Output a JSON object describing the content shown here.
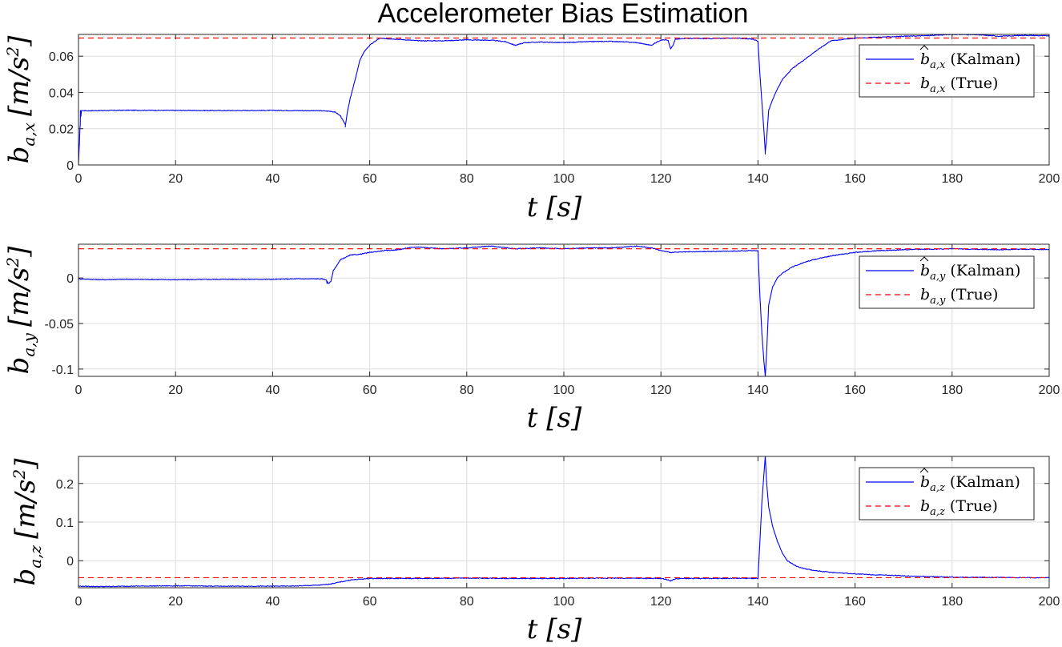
{
  "chart_data": {
    "title": "Accelerometer Bias Estimation",
    "subplots": [
      {
        "type": "line",
        "name_key": "x",
        "ylabel": [
          "b",
          "a,x",
          "[m/s",
          "2",
          "]"
        ],
        "xlabel": [
          "t",
          "[s]"
        ],
        "xlim": [
          0,
          200
        ],
        "ylim": [
          0,
          0.072
        ],
        "xticks": [
          0,
          20,
          40,
          60,
          80,
          100,
          120,
          140,
          160,
          180,
          200
        ],
        "yticks": [
          0,
          0.02,
          0.04,
          0.06
        ],
        "ytick_labels": [
          "0",
          "0.02",
          "0.04",
          "0.06"
        ],
        "grid": true,
        "legend_location": "top-right",
        "series": [
          {
            "name": "b̂a,x (Kalman)",
            "legend_symbol": "b",
            "legend_sub": "a,x",
            "legend_hat": true,
            "legend_suffix": "(Kalman)",
            "color": "#0000ff",
            "style": "solid",
            "x": [
              0,
              0.3,
              0.6,
              2,
              10,
              20,
              30,
              40,
              45,
              50,
              52,
              53,
              54,
              54.6,
              55,
              55.4,
              56,
              57,
              58,
              59,
              60,
              61,
              62,
              65,
              70,
              75,
              80,
              85,
              88,
              90,
              92,
              95,
              100,
              105,
              110,
              115,
              118,
              120,
              121,
              121.5,
              122,
              122.5,
              123,
              125,
              130,
              135,
              139,
              140,
              140.4,
              140.8,
              141.2,
              141.5,
              141.8,
              142.2,
              143,
              144,
              145,
              147,
              150,
              152,
              155,
              160,
              165,
              170,
              175,
              180,
              185,
              190,
              195,
              200
            ],
            "y": [
              0.0,
              0.02,
              0.03,
              0.0299,
              0.0302,
              0.0301,
              0.03,
              0.0301,
              0.03,
              0.0299,
              0.0296,
              0.029,
              0.027,
              0.024,
              0.022,
              0.029,
              0.037,
              0.047,
              0.058,
              0.063,
              0.066,
              0.068,
              0.0698,
              0.0695,
              0.0685,
              0.0685,
              0.069,
              0.0688,
              0.068,
              0.066,
              0.0675,
              0.0678,
              0.0675,
              0.068,
              0.0682,
              0.0675,
              0.066,
              0.069,
              0.069,
              0.0685,
              0.064,
              0.066,
              0.0695,
              0.0698,
              0.0697,
              0.07,
              0.0695,
              0.068,
              0.05,
              0.035,
              0.02,
              0.007,
              0.015,
              0.03,
              0.036,
              0.042,
              0.047,
              0.053,
              0.059,
              0.063,
              0.0685,
              0.07,
              0.0705,
              0.071,
              0.0713,
              0.072,
              0.0718,
              0.071,
              0.0715,
              0.0712
            ],
            "draw_xy": [
              [
                0,
                0
              ],
              [
                0.2,
                0.012
              ],
              [
                0.4,
                0.03
              ],
              [
                55,
                0.021
              ],
              [
                141.5,
                0.006
              ]
            ]
          },
          {
            "name": "ba,x (True)",
            "legend_symbol": "b",
            "legend_sub": "a,x",
            "legend_hat": false,
            "legend_suffix": "(True)",
            "color": "#ff0000",
            "style": "dashed",
            "x": [
              0,
              200
            ],
            "y": [
              0.07,
              0.07
            ]
          }
        ]
      },
      {
        "type": "line",
        "name_key": "y",
        "ylabel": [
          "b",
          "a,y",
          "[m/s",
          "2",
          "]"
        ],
        "xlabel": [
          "t",
          "[s]"
        ],
        "xlim": [
          0,
          200
        ],
        "ylim": [
          -0.108,
          0.037
        ],
        "xticks": [
          0,
          20,
          40,
          60,
          80,
          100,
          120,
          140,
          160,
          180,
          200
        ],
        "yticks": [
          0,
          -0.05,
          -0.1
        ],
        "ytick_labels": [
          "0",
          "-0.05",
          "-0.1"
        ],
        "grid": true,
        "legend_location": "top-right",
        "series": [
          {
            "name": "b̂a,y (Kalman)",
            "legend_symbol": "b",
            "legend_sub": "a,y",
            "legend_hat": true,
            "legend_suffix": "(Kalman)",
            "color": "#0000ff",
            "style": "solid",
            "x": [
              0,
              5,
              10,
              20,
              30,
              40,
              45,
              50,
              51,
              51.5,
              52,
              52.5,
              53,
              54,
              56,
              58,
              60,
              63,
              66,
              68,
              70,
              75,
              80,
              85,
              90,
              95,
              100,
              105,
              110,
              115,
              118,
              120,
              122,
              125,
              130,
              135,
              139,
              140,
              140.4,
              140.8,
              141.2,
              141.5,
              141.8,
              142.2,
              143,
              144,
              145,
              147,
              150,
              153,
              156,
              160,
              165,
              170,
              175,
              180,
              185,
              190,
              195,
              200
            ],
            "y": [
              -0.001,
              -0.002,
              -0.0015,
              -0.002,
              -0.0015,
              -0.0015,
              -0.001,
              -0.001,
              -0.002,
              -0.006,
              -0.004,
              0.008,
              0.012,
              0.02,
              0.025,
              0.026,
              0.028,
              0.03,
              0.031,
              0.033,
              0.034,
              0.032,
              0.033,
              0.035,
              0.032,
              0.033,
              0.032,
              0.033,
              0.033,
              0.035,
              0.033,
              0.03,
              0.028,
              0.0285,
              0.029,
              0.0295,
              0.03,
              0.03,
              -0.02,
              -0.06,
              -0.09,
              -0.108,
              -0.08,
              -0.03,
              -0.01,
              0.0,
              0.005,
              0.012,
              0.018,
              0.022,
              0.025,
              0.028,
              0.03,
              0.031,
              0.0315,
              0.032,
              0.0315,
              0.031,
              0.0315,
              0.031
            ],
            "draw_xy": [
              [
                51.2,
                -0.006
              ],
              [
                141.5,
                -0.108
              ]
            ]
          },
          {
            "name": "ba,y (True)",
            "legend_symbol": "b",
            "legend_sub": "a,y",
            "legend_hat": false,
            "legend_suffix": "(True)",
            "color": "#ff0000",
            "style": "dashed",
            "x": [
              0,
              200
            ],
            "y": [
              0.032,
              0.032
            ]
          }
        ]
      },
      {
        "type": "line",
        "name_key": "z",
        "ylabel": [
          "b",
          "a,z",
          "[m/s",
          "2",
          "]"
        ],
        "xlabel": [
          "t",
          "[s]"
        ],
        "xlim": [
          0,
          200
        ],
        "ylim": [
          -0.07,
          0.27
        ],
        "xticks": [
          0,
          20,
          40,
          60,
          80,
          100,
          120,
          140,
          160,
          180,
          200
        ],
        "yticks": [
          0.2,
          0.1,
          0
        ],
        "ytick_labels": [
          "0.2",
          "0.1",
          "0"
        ],
        "grid": true,
        "legend_location": "top-right",
        "series": [
          {
            "name": "b̂a,z (Kalman)",
            "legend_symbol": "b",
            "legend_sub": "a,z",
            "legend_hat": true,
            "legend_suffix": "(Kalman)",
            "color": "#0000ff",
            "style": "solid",
            "x": [
              0,
              5,
              10,
              20,
              30,
              40,
              45,
              50,
              52,
              54,
              56,
              58,
              60,
              65,
              70,
              80,
              90,
              100,
              110,
              118,
              120,
              121,
              122,
              123,
              125,
              130,
              135,
              139,
              140,
              140.4,
              140.8,
              141.2,
              141.5,
              141.8,
              142.2,
              143,
              144,
              145,
              146,
              148,
              150,
              152,
              155,
              160,
              165,
              170,
              175,
              180,
              185,
              190,
              195,
              200
            ],
            "y": [
              -0.066,
              -0.067,
              -0.066,
              -0.065,
              -0.066,
              -0.066,
              -0.0655,
              -0.063,
              -0.06,
              -0.055,
              -0.05,
              -0.048,
              -0.046,
              -0.046,
              -0.046,
              -0.045,
              -0.046,
              -0.046,
              -0.045,
              -0.046,
              -0.046,
              -0.048,
              -0.052,
              -0.047,
              -0.046,
              -0.046,
              -0.0455,
              -0.046,
              -0.046,
              0.05,
              0.15,
              0.22,
              0.27,
              0.2,
              0.14,
              0.09,
              0.05,
              0.02,
              0.0,
              -0.015,
              -0.022,
              -0.026,
              -0.03,
              -0.034,
              -0.037,
              -0.039,
              -0.041,
              -0.0425,
              -0.043,
              -0.0435,
              -0.044,
              -0.044
            ],
            "draw_xy": [
              [
                121.8,
                -0.052
              ],
              [
                141.5,
                0.27
              ]
            ]
          },
          {
            "name": "ba,z (True)",
            "legend_symbol": "b",
            "legend_sub": "a,z",
            "legend_hat": false,
            "legend_suffix": "(True)",
            "color": "#ff0000",
            "style": "dashed",
            "x": [
              0,
              200
            ],
            "y": [
              -0.044,
              -0.044
            ]
          }
        ]
      }
    ]
  }
}
